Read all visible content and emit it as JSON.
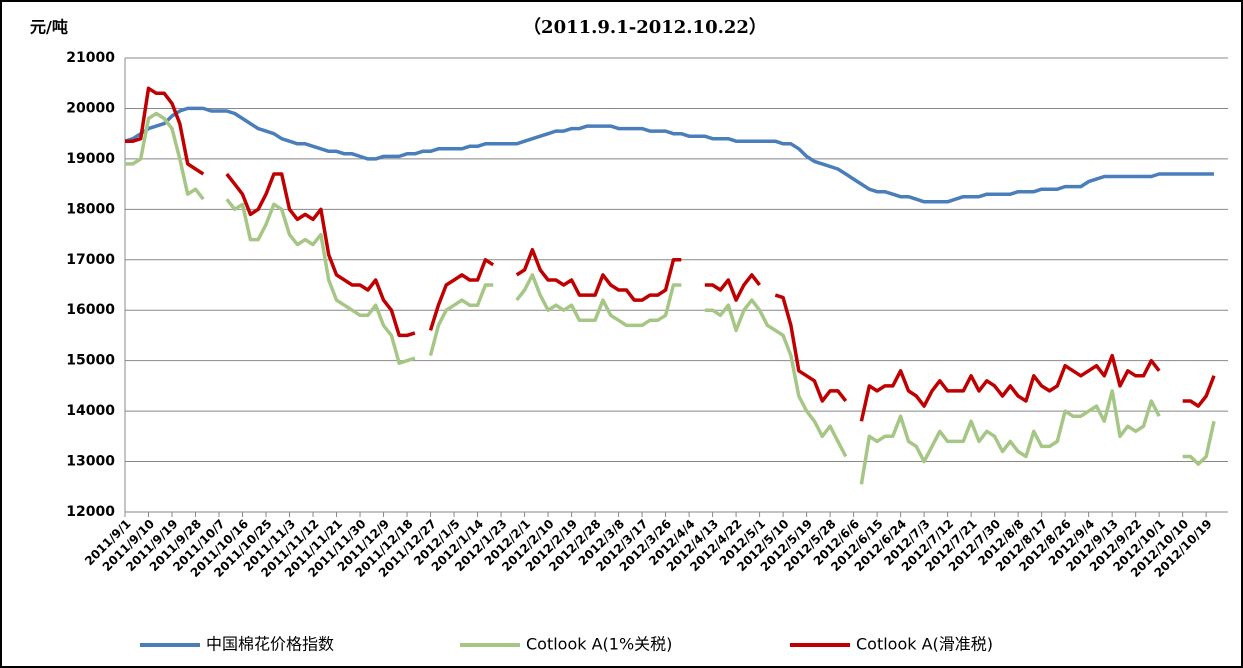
{
  "chart_data": {
    "type": "line",
    "title": "（2011.9.1-2012.10.22）",
    "y_label": "元/吨",
    "categories": [
      "2011/9/1",
      null,
      null,
      "2011/9/10",
      null,
      null,
      "2011/9/19",
      null,
      null,
      "2011/9/28",
      null,
      null,
      "2011/10/7",
      null,
      null,
      "2011/10/16",
      null,
      null,
      "2011/10/25",
      null,
      null,
      "2011/11/3",
      null,
      null,
      "2011/11/12",
      null,
      null,
      "2011/11/21",
      null,
      null,
      "2011/11/30",
      null,
      null,
      "2011/12/9",
      null,
      null,
      "2011/12/18",
      null,
      null,
      "2011/12/27",
      null,
      null,
      "2012/1/5",
      null,
      null,
      "2012/1/14",
      null,
      null,
      "2012/1/23",
      null,
      null,
      "2012/2/1",
      null,
      null,
      "2012/2/10",
      null,
      null,
      "2012/2/19",
      null,
      null,
      "2012/2/28",
      null,
      null,
      "2012/3/8",
      null,
      null,
      "2012/3/17",
      null,
      null,
      "2012/3/26",
      null,
      null,
      "2012/4/4",
      null,
      null,
      "2012/4/13",
      null,
      null,
      "2012/4/22",
      null,
      null,
      "2012/5/1",
      null,
      null,
      "2012/5/10",
      null,
      null,
      "2012/5/19",
      null,
      null,
      "2012/5/28",
      null,
      null,
      "2012/6/6",
      null,
      null,
      "2012/6/15",
      null,
      null,
      "2012/6/24",
      null,
      null,
      "2012/7/3",
      null,
      null,
      "2012/7/12",
      null,
      null,
      "2012/7/21",
      null,
      null,
      "2012/7/30",
      null,
      null,
      "2012/8/8",
      null,
      null,
      "2012/8/17",
      null,
      null,
      "2012/8/26",
      null,
      null,
      "2012/9/4",
      null,
      null,
      "2012/9/13",
      null,
      null,
      "2012/9/22",
      null,
      null,
      "2012/10/1",
      null,
      null,
      "2012/10/10",
      null,
      null,
      "2012/10/19",
      null
    ],
    "series": [
      {
        "name": "中国棉花价格指数",
        "color": "#4a7ebb",
        "values": [
          19350,
          19400,
          19500,
          19600,
          19650,
          19700,
          19850,
          19950,
          20000,
          20000,
          20000,
          19950,
          19950,
          19950,
          19900,
          19800,
          19700,
          19600,
          19550,
          19500,
          19400,
          19350,
          19300,
          19300,
          19250,
          19200,
          19150,
          19150,
          19100,
          19100,
          19050,
          19000,
          19000,
          19050,
          19050,
          19050,
          19100,
          19100,
          19150,
          19150,
          19200,
          19200,
          19200,
          19200,
          19250,
          19250,
          19300,
          19300,
          19300,
          19300,
          19300,
          19350,
          19400,
          19450,
          19500,
          19550,
          19550,
          19600,
          19600,
          19650,
          19650,
          19650,
          19650,
          19600,
          19600,
          19600,
          19600,
          19550,
          19550,
          19550,
          19500,
          19500,
          19450,
          19450,
          19450,
          19400,
          19400,
          19400,
          19350,
          19350,
          19350,
          19350,
          19350,
          19350,
          19300,
          19300,
          19200,
          19050,
          18950,
          18900,
          18850,
          18800,
          18700,
          18600,
          18500,
          18400,
          18350,
          18350,
          18300,
          18250,
          18250,
          18200,
          18150,
          18150,
          18150,
          18150,
          18200,
          18250,
          18250,
          18250,
          18300,
          18300,
          18300,
          18300,
          18350,
          18350,
          18350,
          18400,
          18400,
          18400,
          18450,
          18450,
          18450,
          18550,
          18600,
          18650,
          18650,
          18650,
          18650,
          18650,
          18650,
          18650,
          18700,
          18700,
          18700,
          18700,
          18700,
          18700,
          18700,
          18700
        ]
      },
      {
        "name": "Cotlook A(1%关税)",
        "color": "#a6c685",
        "values": [
          18900,
          18900,
          19000,
          19800,
          19900,
          19800,
          19600,
          19000,
          18300,
          18400,
          18200,
          null,
          null,
          18200,
          18000,
          18100,
          17400,
          17400,
          17700,
          18100,
          18000,
          17500,
          17300,
          17400,
          17300,
          17500,
          16600,
          16200,
          16100,
          16000,
          15900,
          15900,
          16100,
          15700,
          15500,
          14950,
          15000,
          15050,
          null,
          15100,
          15700,
          16000,
          16100,
          16200,
          16100,
          16100,
          16500,
          16500,
          null,
          null,
          16200,
          16400,
          16700,
          16300,
          16000,
          16100,
          16000,
          16100,
          15800,
          15800,
          15800,
          16200,
          15900,
          15800,
          15700,
          15700,
          15700,
          15800,
          15800,
          15900,
          16500,
          16500,
          null,
          null,
          16000,
          16000,
          15900,
          16100,
          15600,
          16000,
          16200,
          16000,
          15700,
          15600,
          15500,
          15100,
          14300,
          14000,
          13800,
          13500,
          13700,
          13400,
          13100,
          null,
          12550,
          13500,
          13400,
          13500,
          13500,
          13900,
          13400,
          13300,
          13000,
          13300,
          13600,
          13400,
          13400,
          13400,
          13800,
          13400,
          13600,
          13500,
          13200,
          13400,
          13200,
          13100,
          13600,
          13300,
          13300,
          13400,
          14000,
          13900,
          13900,
          14000,
          14100,
          13800,
          14400,
          13500,
          13700,
          13600,
          13700,
          14200,
          13900,
          null,
          null,
          13100,
          13100,
          12950,
          13100,
          13800
        ]
      },
      {
        "name": "Cotlook A(滑准税)",
        "color": "#c00000",
        "values": [
          19350,
          19350,
          19400,
          20400,
          20300,
          20300,
          20100,
          19700,
          18900,
          18800,
          18700,
          null,
          null,
          18700,
          18500,
          18300,
          17900,
          18000,
          18300,
          18700,
          18700,
          18000,
          17800,
          17900,
          17800,
          18000,
          17100,
          16700,
          16600,
          16500,
          16500,
          16400,
          16600,
          16200,
          16000,
          15500,
          15500,
          15550,
          null,
          15600,
          16100,
          16500,
          16600,
          16700,
          16600,
          16600,
          17000,
          16900,
          null,
          null,
          16700,
          16800,
          17200,
          16800,
          16600,
          16600,
          16500,
          16600,
          16300,
          16300,
          16300,
          16700,
          16500,
          16400,
          16400,
          16200,
          16200,
          16300,
          16300,
          16400,
          17000,
          17000,
          null,
          null,
          16500,
          16500,
          16400,
          16600,
          16200,
          16500,
          16700,
          16500,
          null,
          16300,
          16250,
          15700,
          14800,
          14700,
          14600,
          14200,
          14400,
          14400,
          14200,
          null,
          13800,
          14500,
          14400,
          14500,
          14500,
          14800,
          14400,
          14300,
          14100,
          14400,
          14600,
          14400,
          14400,
          14400,
          14700,
          14400,
          14600,
          14500,
          14300,
          14500,
          14300,
          14200,
          14700,
          14500,
          14400,
          14500,
          14900,
          14800,
          14700,
          14800,
          14900,
          14700,
          15100,
          14500,
          14800,
          14700,
          14700,
          15000,
          14800,
          null,
          null,
          14200,
          14200,
          14100,
          14300,
          14700
        ]
      }
    ],
    "ylim": [
      12000,
      21000
    ],
    "yticks": [
      12000,
      13000,
      14000,
      15000,
      16000,
      17000,
      18000,
      19000,
      20000,
      21000
    ],
    "grid": true,
    "legend": "bottom"
  }
}
